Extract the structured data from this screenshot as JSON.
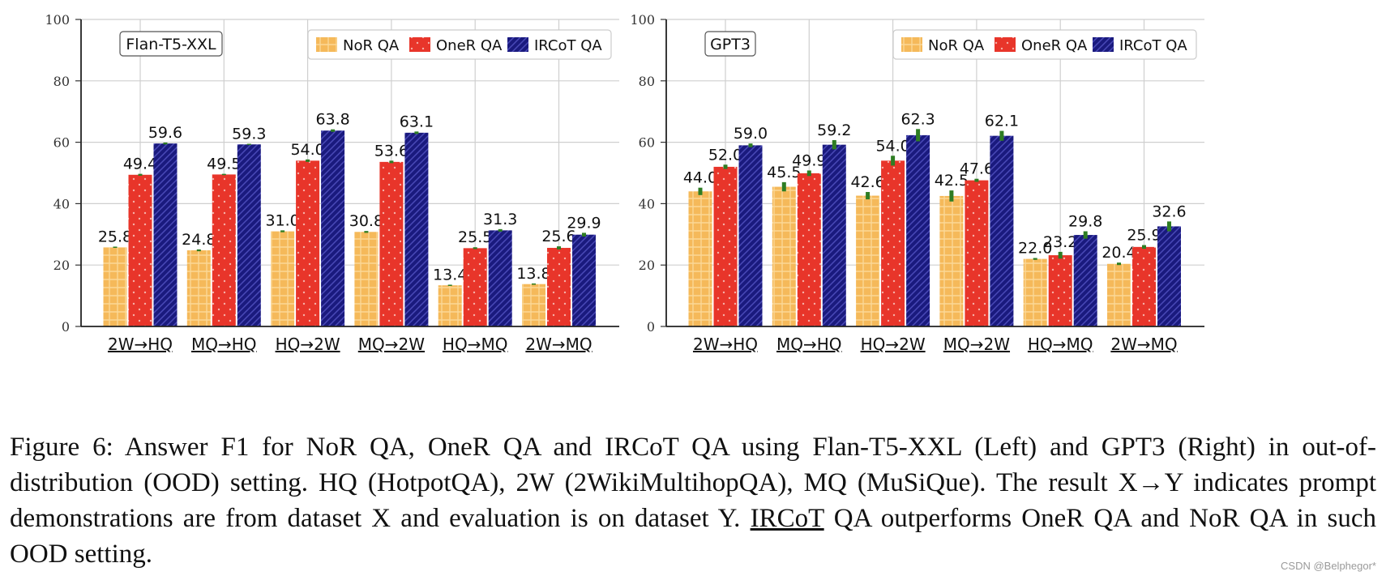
{
  "chart_data": [
    {
      "type": "bar",
      "title": "Flan-T5-XXL",
      "ylim": [
        0,
        100
      ],
      "yticks": [
        0,
        20,
        40,
        60,
        80,
        100
      ],
      "grid": true,
      "legend": "top-right",
      "categories": [
        "2W→HQ",
        "MQ→HQ",
        "HQ→2W",
        "MQ→2W",
        "HQ→MQ",
        "2W→MQ"
      ],
      "series": [
        {
          "name": "NoR QA",
          "values": [
            25.8,
            24.8,
            31.0,
            30.8,
            13.4,
            13.8
          ],
          "errors": [
            0.2,
            0.3,
            0.3,
            0.3,
            0.2,
            0.2
          ]
        },
        {
          "name": "OneR QA",
          "values": [
            49.4,
            49.5,
            54.0,
            53.6,
            25.5,
            25.6
          ],
          "errors": [
            0.3,
            0.2,
            0.4,
            0.4,
            0.3,
            0.5
          ]
        },
        {
          "name": "IRCoT QA",
          "values": [
            59.6,
            59.3,
            63.8,
            63.1,
            31.3,
            29.9
          ],
          "errors": [
            0.3,
            0.2,
            0.4,
            0.4,
            0.4,
            0.6
          ]
        }
      ]
    },
    {
      "type": "bar",
      "title": "GPT3",
      "ylim": [
        0,
        100
      ],
      "yticks": [
        0,
        20,
        40,
        60,
        80,
        100
      ],
      "grid": true,
      "legend": "top-right",
      "categories": [
        "2W→HQ",
        "MQ→HQ",
        "HQ→2W",
        "MQ→2W",
        "HQ→MQ",
        "2W→MQ"
      ],
      "series": [
        {
          "name": "NoR QA",
          "values": [
            44.0,
            45.5,
            42.6,
            42.5,
            22.0,
            20.4
          ],
          "errors": [
            1.2,
            1.5,
            1.2,
            1.8,
            0.3,
            0.4
          ]
        },
        {
          "name": "OneR QA",
          "values": [
            52.0,
            49.9,
            54.0,
            47.6,
            23.2,
            25.9
          ],
          "errors": [
            0.7,
            0.9,
            1.6,
            0.5,
            1.1,
            0.6
          ]
        },
        {
          "name": "IRCoT QA",
          "values": [
            59.0,
            59.2,
            62.3,
            62.1,
            29.8,
            32.6
          ],
          "errors": [
            0.6,
            1.5,
            2.0,
            1.6,
            1.2,
            1.6
          ]
        }
      ]
    }
  ],
  "caption": {
    "part1": "Figure 6: Answer F1 for NoR QA, OneR QA and IRCoT QA using Flan-T5-XXL (Left) and GPT3 (Right) in out-of-distribution (OOD) setting. HQ (HotpotQA), 2W (2WikiMultihopQA), MQ (MuSiQue). The result X→Y indicates prompt demonstrations are from dataset X and evaluation is on dataset Y. ",
    "underlined": "IRCoT",
    "part2": " QA outperforms OneR QA and NoR QA in such OOD setting."
  },
  "watermark": "CSDN @Belphegor*",
  "colors": {
    "nor": "#f5b95a",
    "oner": "#e8352a",
    "ircot": "#1a1a7e",
    "error": "#2e7d23",
    "grid": "#cfcfcf"
  }
}
